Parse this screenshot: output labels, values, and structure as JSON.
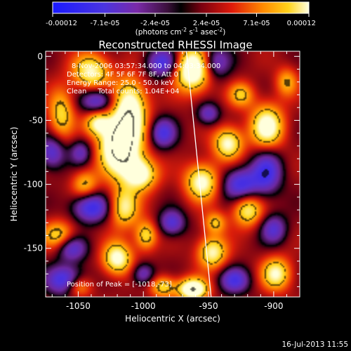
{
  "chart_data": {
    "type": "heatmap",
    "title": "Reconstructed RHESSI Image",
    "xlabel": "Heliocentric X (arcsec)",
    "ylabel": "Heliocentric Y (arcsec)",
    "xlim": [
      -1075,
      -880
    ],
    "ylim": [
      -188,
      4
    ],
    "x_ticks": [
      "-1050",
      "-1000",
      "-950",
      "-900"
    ],
    "x_tick_values": [
      -1050,
      -1000,
      -950,
      -900
    ],
    "y_ticks": [
      "0",
      "-50",
      "-100",
      "-150"
    ],
    "y_tick_values": [
      0,
      -50,
      -100,
      -150
    ],
    "colorbar": {
      "ticks": [
        "-0.00012",
        "-7.1e-05",
        "-2.4e-05",
        "2.4e-05",
        "7.1e-05",
        "0.00012"
      ],
      "tick_values": [
        -0.00012,
        -7.1e-05,
        -2.4e-05,
        2.4e-05,
        7.1e-05,
        0.00012
      ],
      "range": [
        -0.00012,
        0.00012
      ],
      "unit_label_base": "(photons cm",
      "unit_sup1": "-2",
      "unit_mid": " s",
      "unit_sup2": "-1",
      "unit_end": " asec",
      "unit_sup3": "-2",
      "unit_close": ")"
    },
    "annotations": [
      "8-Nov-2006 03:57:34.000 to 04:03:34.000",
      "Detectors: 4F 5F 6F 7F 8F, Att 0",
      "Energy Range: 25.0 - 50.0 keV",
      "Clean     Total counts: 1.04E+04"
    ],
    "peak_label": "Position of Peak = [-1018,-73]",
    "peak": [
      -1018,
      -73
    ],
    "limb_line": [
      [
        -967,
        4
      ],
      [
        -948,
        -188
      ]
    ],
    "blobs": [
      {
        "x": -962,
        "y": -10,
        "sx": 10,
        "sy": 12,
        "a": 1.3
      },
      {
        "x": -1018,
        "y": -70,
        "sx": 11,
        "sy": 16,
        "a": 1.5
      },
      {
        "x": -1010,
        "y": -40,
        "sx": 9,
        "sy": 16,
        "a": 1.05
      },
      {
        "x": -1040,
        "y": -12,
        "sx": 10,
        "sy": 10,
        "a": 0.9
      },
      {
        "x": -1002,
        "y": -92,
        "sx": 9,
        "sy": 9,
        "a": 1.0
      },
      {
        "x": -1015,
        "y": -118,
        "sx": 8,
        "sy": 11,
        "a": 0.85
      },
      {
        "x": -1035,
        "y": -52,
        "sx": 7,
        "sy": 7,
        "a": 0.8
      },
      {
        "x": -1063,
        "y": -45,
        "sx": 7,
        "sy": 14,
        "a": 0.7
      },
      {
        "x": -955,
        "y": -98,
        "sx": 9,
        "sy": 10,
        "a": 1.0
      },
      {
        "x": -935,
        "y": -68,
        "sx": 8,
        "sy": 9,
        "a": 0.95
      },
      {
        "x": -905,
        "y": -55,
        "sx": 9,
        "sy": 12,
        "a": 1.05
      },
      {
        "x": -920,
        "y": -120,
        "sx": 8,
        "sy": 9,
        "a": 0.85
      },
      {
        "x": -947,
        "y": -153,
        "sx": 8,
        "sy": 9,
        "a": 0.9
      },
      {
        "x": -962,
        "y": -182,
        "sx": 8,
        "sy": 6,
        "a": 1.3
      },
      {
        "x": -1020,
        "y": -158,
        "sx": 8,
        "sy": 9,
        "a": 1.0
      },
      {
        "x": -998,
        "y": -140,
        "sx": 6,
        "sy": 8,
        "a": 0.75
      },
      {
        "x": -1065,
        "y": -140,
        "sx": 9,
        "sy": 8,
        "a": 0.7
      },
      {
        "x": -898,
        "y": -170,
        "sx": 8,
        "sy": 9,
        "a": 0.9
      },
      {
        "x": -890,
        "y": -20,
        "sx": 6,
        "sy": 8,
        "a": 0.55
      },
      {
        "x": -925,
        "y": -30,
        "sx": 7,
        "sy": 7,
        "a": 0.6
      },
      {
        "x": -945,
        "y": -130,
        "sx": 6,
        "sy": 6,
        "a": 0.6
      },
      {
        "x": -1045,
        "y": -100,
        "sx": 7,
        "sy": 8,
        "a": 0.6
      },
      {
        "x": -985,
        "y": -180,
        "sx": 7,
        "sy": 6,
        "a": 0.7
      },
      {
        "x": -1050,
        "y": -180,
        "sx": 7,
        "sy": 6,
        "a": 0.65
      },
      {
        "x": -1040,
        "y": -118,
        "sx": 10,
        "sy": 8,
        "a": -0.9
      },
      {
        "x": -1035,
        "y": -35,
        "sx": 9,
        "sy": 7,
        "a": -0.75
      },
      {
        "x": -985,
        "y": -5,
        "sx": 9,
        "sy": 8,
        "a": -0.8
      },
      {
        "x": -925,
        "y": -100,
        "sx": 10,
        "sy": 9,
        "a": -0.85
      },
      {
        "x": -905,
        "y": -90,
        "sx": 8,
        "sy": 12,
        "a": -0.8
      },
      {
        "x": -1060,
        "y": -175,
        "sx": 10,
        "sy": 8,
        "a": -0.9
      },
      {
        "x": -1055,
        "y": -150,
        "sx": 8,
        "sy": 7,
        "a": -0.7
      },
      {
        "x": -945,
        "y": -5,
        "sx": 8,
        "sy": 9,
        "a": -0.7
      },
      {
        "x": -985,
        "y": -60,
        "sx": 7,
        "sy": 8,
        "a": -0.75
      },
      {
        "x": -930,
        "y": -175,
        "sx": 8,
        "sy": 7,
        "a": -0.75
      },
      {
        "x": -1070,
        "y": -75,
        "sx": 7,
        "sy": 9,
        "a": -0.7
      },
      {
        "x": -900,
        "y": -135,
        "sx": 7,
        "sy": 8,
        "a": -0.65
      },
      {
        "x": -978,
        "y": -130,
        "sx": 7,
        "sy": 7,
        "a": -0.7
      },
      {
        "x": -950,
        "y": -45,
        "sx": 6,
        "sy": 6,
        "a": -0.6
      },
      {
        "x": -1000,
        "y": -170,
        "sx": 6,
        "sy": 6,
        "a": -0.6
      },
      {
        "x": -1048,
        "y": -75,
        "sx": 6,
        "sy": 7,
        "a": -0.55
      }
    ]
  },
  "footer": {
    "timestamp": "16-Jul-2013 11:55"
  }
}
